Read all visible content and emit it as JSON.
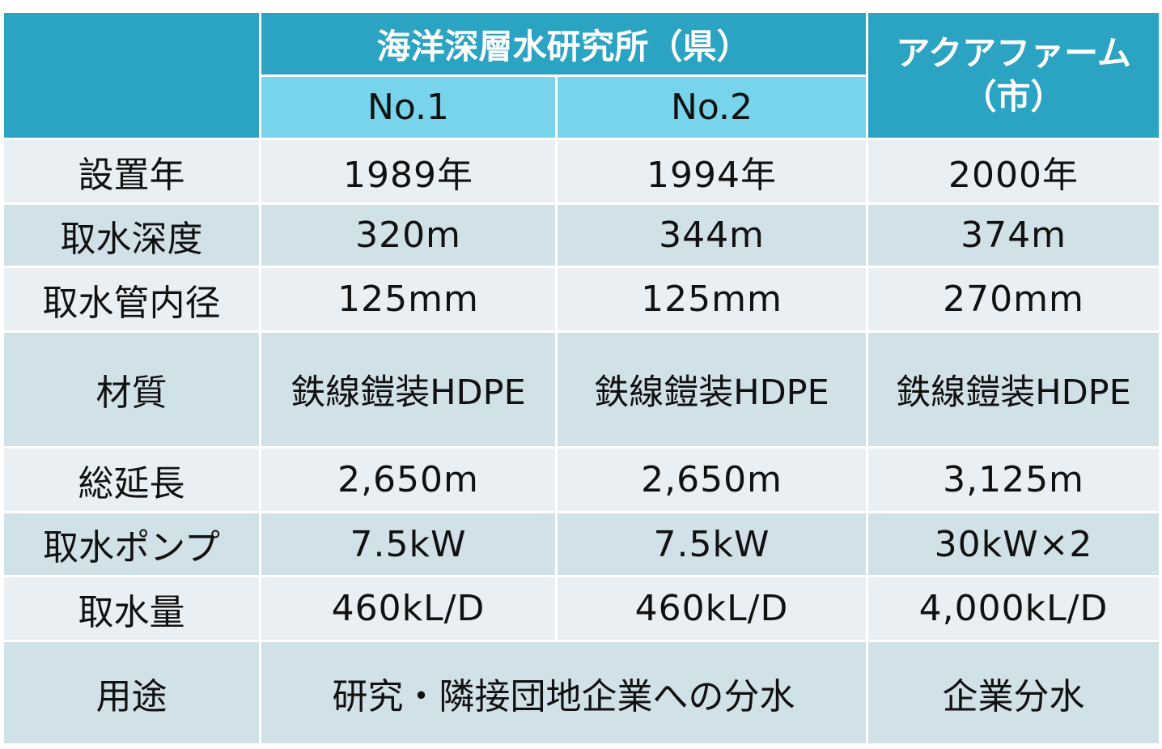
{
  "header": {
    "institute": "海洋深層水研究所（県）",
    "aquafarm_line1": "アクアファーム",
    "aquafarm_line2": "（市）",
    "no1": "No.1",
    "no2": "No.2"
  },
  "rows": [
    {
      "label": "設置年",
      "no1": "1989年",
      "no2": "1994年",
      "aqua": "2000年"
    },
    {
      "label": "取水深度",
      "no1": "320m",
      "no2": "344m",
      "aqua": "374m"
    },
    {
      "label": "取水管内径",
      "no1": "125mm",
      "no2": "125mm",
      "aqua": "270mm"
    },
    {
      "label": "材質",
      "no1": "鉄線鎧装HDPE",
      "no2": "鉄線鎧装HDPE",
      "aqua": "鉄線鎧装HDPE"
    },
    {
      "label": "総延長",
      "no1": "2,650m",
      "no2": "2,650m",
      "aqua": "3,125m"
    },
    {
      "label": "取水ポンプ",
      "no1": "7.5kW",
      "no2": "7.5kW",
      "aqua": "30kW×2"
    },
    {
      "label": "取水量",
      "no1": "460kL/D",
      "no2": "460kL/D",
      "aqua": "4,000kL/D"
    }
  ],
  "usage": {
    "label": "用途",
    "institute": "研究・隣接団地企業への分水",
    "aqua": "企業分水"
  },
  "colors": {
    "header_dark": "#2ba3c2",
    "header_light": "#77d4ea",
    "row_light": "#e9eff3",
    "row_dark": "#d1e1e8"
  }
}
